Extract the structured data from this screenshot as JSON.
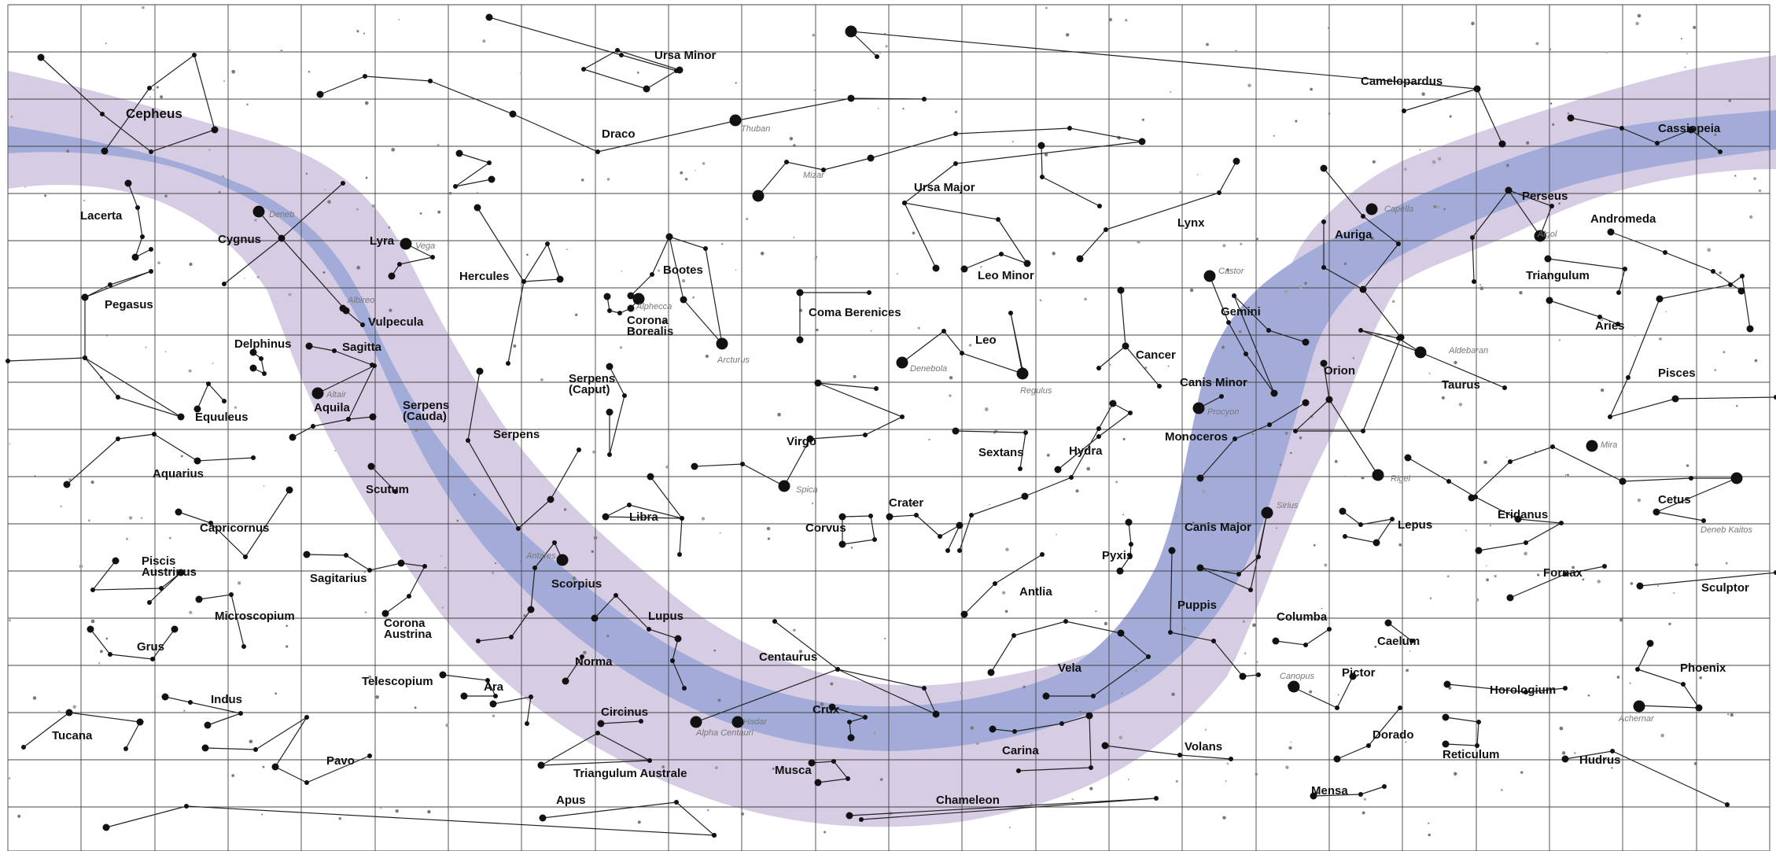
{
  "colors": {
    "milky_way_outer": "#d6cde4",
    "milky_way_inner": "#a3acd9",
    "grid": "#444444",
    "star": "#111111",
    "faint_star": "#8a8a8a",
    "label": "#111111",
    "star_label": "#777777"
  },
  "constellations": [
    {
      "id": "ursa-minor",
      "text": "Ursa Minor"
    },
    {
      "id": "camelopardus",
      "text": "Camelopardus"
    },
    {
      "id": "cepheus",
      "text": "Cepheus"
    },
    {
      "id": "draco",
      "text": "Draco"
    },
    {
      "id": "cassiopeia",
      "text": "Cassiopeia"
    },
    {
      "id": "ursa-major",
      "text": "Ursa Major"
    },
    {
      "id": "perseus",
      "text": "Perseus"
    },
    {
      "id": "lacerta",
      "text": "Lacerta"
    },
    {
      "id": "cygnus",
      "text": "Cygnus"
    },
    {
      "id": "lyra",
      "text": "Lyra"
    },
    {
      "id": "lynx",
      "text": "Lynx"
    },
    {
      "id": "andromeda",
      "text": "Andromeda"
    },
    {
      "id": "auriga",
      "text": "Auriga"
    },
    {
      "id": "bootes",
      "text": "Bootes"
    },
    {
      "id": "hercules",
      "text": "Hercules"
    },
    {
      "id": "leo-minor",
      "text": "Leo Minor"
    },
    {
      "id": "triangulum",
      "text": "Triangulum"
    },
    {
      "id": "gemini",
      "text": "Gemini"
    },
    {
      "id": "pegasus",
      "text": "Pegasus"
    },
    {
      "id": "coma-berenices",
      "text": "Coma Berenices"
    },
    {
      "id": "vulpecula",
      "text": "Vulpecula"
    },
    {
      "id": "corona-borealis-1",
      "text": "Corona"
    },
    {
      "id": "corona-borealis-2",
      "text": "Borealis"
    },
    {
      "id": "aries",
      "text": "Aries"
    },
    {
      "id": "delphinus",
      "text": "Delphinus"
    },
    {
      "id": "sagitta",
      "text": "Sagitta"
    },
    {
      "id": "leo",
      "text": "Leo"
    },
    {
      "id": "cancer",
      "text": "Cancer"
    },
    {
      "id": "pisces",
      "text": "Pisces"
    },
    {
      "id": "serpens-caput-1",
      "text": "Serpens"
    },
    {
      "id": "serpens-caput-2",
      "text": "(Caput)"
    },
    {
      "id": "canis-minor",
      "text": "Canis Minor"
    },
    {
      "id": "orion",
      "text": "Orion"
    },
    {
      "id": "taurus",
      "text": "Taurus"
    },
    {
      "id": "serpens-cauda-1",
      "text": "Serpens"
    },
    {
      "id": "serpens-cauda-2",
      "text": "(Cauda)"
    },
    {
      "id": "aquila",
      "text": "Aquila"
    },
    {
      "id": "equuleus",
      "text": "Equuleus"
    },
    {
      "id": "serpens",
      "text": "Serpens"
    },
    {
      "id": "monoceros",
      "text": "Monoceros"
    },
    {
      "id": "virgo",
      "text": "Virgo"
    },
    {
      "id": "sextans",
      "text": "Sextans"
    },
    {
      "id": "hydra",
      "text": "Hydra"
    },
    {
      "id": "aquarius",
      "text": "Aquarius"
    },
    {
      "id": "scutum",
      "text": "Scutum"
    },
    {
      "id": "cetus",
      "text": "Cetus"
    },
    {
      "id": "crater",
      "text": "Crater"
    },
    {
      "id": "eridanus",
      "text": "Eridanus"
    },
    {
      "id": "libra",
      "text": "Libra"
    },
    {
      "id": "canis-major",
      "text": "Canis Major"
    },
    {
      "id": "lepus",
      "text": "Lepus"
    },
    {
      "id": "capricornus",
      "text": "Capricornus"
    },
    {
      "id": "corvus",
      "text": "Corvus"
    },
    {
      "id": "pyxis",
      "text": "Pyxis"
    },
    {
      "id": "piscis-austrinus-1",
      "text": "Piscis"
    },
    {
      "id": "piscis-austrinus-2",
      "text": "Austrinus"
    },
    {
      "id": "sagitarius",
      "text": "Sagitarius"
    },
    {
      "id": "scorpius",
      "text": "Scorpius"
    },
    {
      "id": "fornax",
      "text": "Fornax"
    },
    {
      "id": "sculptor",
      "text": "Sculptor"
    },
    {
      "id": "antlia",
      "text": "Antlia"
    },
    {
      "id": "puppis",
      "text": "Puppis"
    },
    {
      "id": "microscopium",
      "text": "Microscopium"
    },
    {
      "id": "lupus",
      "text": "Lupus"
    },
    {
      "id": "columba",
      "text": "Columba"
    },
    {
      "id": "corona-australis-1",
      "text": "Corona"
    },
    {
      "id": "corona-australis-2",
      "text": "Austrina"
    },
    {
      "id": "caelum",
      "text": "Caelum"
    },
    {
      "id": "grus",
      "text": "Grus"
    },
    {
      "id": "centaurus",
      "text": "Centaurus"
    },
    {
      "id": "norma",
      "text": "Norma"
    },
    {
      "id": "vela",
      "text": "Vela"
    },
    {
      "id": "phoenix",
      "text": "Phoenix"
    },
    {
      "id": "pictor",
      "text": "Pictor"
    },
    {
      "id": "telescopium",
      "text": "Telescopium"
    },
    {
      "id": "ara",
      "text": "Ara"
    },
    {
      "id": "horologium",
      "text": "Horologium"
    },
    {
      "id": "indus",
      "text": "Indus"
    },
    {
      "id": "crux",
      "text": "Crux"
    },
    {
      "id": "circinus",
      "text": "Circinus"
    },
    {
      "id": "tucana",
      "text": "Tucana"
    },
    {
      "id": "dorado",
      "text": "Dorado"
    },
    {
      "id": "volans",
      "text": "Volans"
    },
    {
      "id": "carina",
      "text": "Carina"
    },
    {
      "id": "pavo",
      "text": "Pavo"
    },
    {
      "id": "reticulum",
      "text": "Reticulum"
    },
    {
      "id": "hudrus",
      "text": "Hudrus"
    },
    {
      "id": "triangulum-australe",
      "text": "Triangulum Australe"
    },
    {
      "id": "musca",
      "text": "Musca"
    },
    {
      "id": "mensa",
      "text": "Mensa"
    },
    {
      "id": "apus",
      "text": "Apus"
    },
    {
      "id": "chameleon",
      "text": "Chameleon"
    }
  ],
  "stars": [
    {
      "id": "thuban",
      "text": "Thuban"
    },
    {
      "id": "mizar",
      "text": "Mizar"
    },
    {
      "id": "deneb",
      "text": "Deneb"
    },
    {
      "id": "vega",
      "text": "Vega"
    },
    {
      "id": "capella",
      "text": "Capella"
    },
    {
      "id": "algol",
      "text": "Algol"
    },
    {
      "id": "castor",
      "text": "Castor"
    },
    {
      "id": "albireo",
      "text": "Albireo"
    },
    {
      "id": "alphecca",
      "text": "Alphecca"
    },
    {
      "id": "aldebaran",
      "text": "Aldebaran"
    },
    {
      "id": "arcturus",
      "text": "Arcturus"
    },
    {
      "id": "denebola",
      "text": "Denebola"
    },
    {
      "id": "altair",
      "text": "Altair"
    },
    {
      "id": "regulus",
      "text": "Regulus"
    },
    {
      "id": "procyon",
      "text": "Procyon"
    },
    {
      "id": "mira",
      "text": "Mira"
    },
    {
      "id": "rigel",
      "text": "Rigel"
    },
    {
      "id": "spica",
      "text": "Spica"
    },
    {
      "id": "sirius",
      "text": "Sirius"
    },
    {
      "id": "deneb-kaitos",
      "text": "Deneb Kaitos"
    },
    {
      "id": "antares",
      "text": "Antares"
    },
    {
      "id": "canopus",
      "text": "Canopus"
    },
    {
      "id": "achernar",
      "text": "Achernar"
    },
    {
      "id": "hadar",
      "text": "Hadar"
    },
    {
      "id": "alpha-centauri",
      "text": "Alpha Centauri"
    }
  ]
}
